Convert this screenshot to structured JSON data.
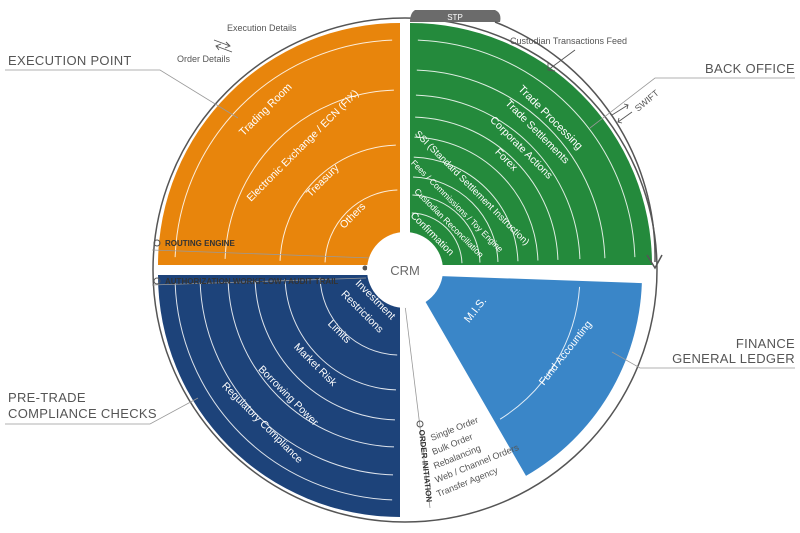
{
  "labels": {
    "execution_point": "EXECUTION POINT",
    "back_office": "BACK OFFICE",
    "finance": [
      "FINANCE",
      "GENERAL LEDGER"
    ],
    "pretrade": [
      "PRE-TRADE",
      "COMPLIANCE CHECKS"
    ]
  },
  "center": "CRM",
  "flows": {
    "execution_details": "Execution Details",
    "order_details": "Order Details",
    "custodian_feed": "Custodian Transactions Feed",
    "swift": "SWIFT",
    "stp": "STP"
  },
  "bars": {
    "routing": "ROUTING ENGINE",
    "authorization": "AUTHORIZATION WORKFLOW / AUDIT TRAIL",
    "order_initiation": "ORDER INITIATION"
  },
  "order_items": [
    "Single Order",
    "Bulk Order",
    "Rebalancing",
    "Web / Channel Orders",
    "Transfer Agency"
  ],
  "sectors": {
    "execution": {
      "color": "#e8850c",
      "items": [
        "Trading Room",
        "Electronic Exchange / ECN (FIX)",
        "Treasury",
        "Others"
      ]
    },
    "back_office": {
      "color": "#248a3c",
      "items": [
        "Trade Processing",
        "Trade Settlements",
        "Corporate Actions",
        "Forex",
        "SSI (Standard Settlement Instruction)",
        "Fees / Commissions / Toy Engine",
        "Custodian Reconciliation",
        "Confirmation"
      ]
    },
    "finance": {
      "color": "#3a86c8",
      "items": [
        "M.I.S.",
        "Fund Accounting"
      ]
    },
    "pretrade": {
      "color": "#1d437a",
      "items": [
        "Investment",
        "Restrictions",
        "Limits",
        "Market Risk",
        "Borrowing Power",
        "Regulatory Compliance"
      ]
    }
  }
}
